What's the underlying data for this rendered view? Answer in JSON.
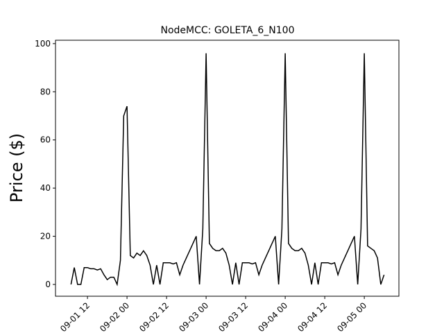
{
  "chart_data": {
    "type": "line",
    "title": "NodeMCC: GOLETA_6_N100",
    "y_label": "Price ($)",
    "x": [
      7,
      8,
      9,
      10,
      11,
      12,
      13,
      14,
      15,
      16,
      17,
      18,
      19,
      20,
      21,
      22,
      23,
      24,
      25,
      26,
      27,
      28,
      29,
      30,
      31,
      32,
      33,
      34,
      35,
      36,
      37,
      38,
      39,
      40,
      41,
      42,
      43,
      44,
      45,
      46,
      47,
      48,
      49,
      50,
      51,
      52,
      53,
      54,
      55,
      56,
      57,
      58,
      59,
      60,
      61,
      62,
      63,
      64,
      65,
      66,
      67,
      68,
      69,
      70,
      71,
      72,
      73,
      74,
      75,
      76,
      77,
      78,
      79,
      80,
      81,
      82,
      83,
      84,
      85,
      86,
      87,
      88,
      89,
      90,
      91,
      92,
      93,
      94,
      95,
      96,
      97,
      98,
      99,
      100,
      101,
      102
    ],
    "series": [
      {
        "name": "Price",
        "color": "#000000",
        "values": [
          0,
          7,
          0,
          0,
          7,
          7,
          6.5,
          6.5,
          6,
          6.5,
          4,
          2,
          3,
          3,
          0,
          10,
          70,
          74,
          12,
          11,
          13,
          12,
          14,
          12,
          8,
          0,
          8,
          0,
          9,
          9,
          9,
          8.5,
          9,
          4,
          8,
          11,
          14,
          17,
          20,
          0,
          23,
          96,
          17,
          15,
          14,
          14,
          15,
          13,
          8,
          0,
          9,
          0,
          9,
          9,
          9,
          8.5,
          9,
          4,
          8,
          11,
          14,
          17,
          20,
          0,
          23,
          96,
          17,
          15,
          14,
          14,
          15,
          13,
          8,
          0,
          9,
          0,
          9,
          9,
          9,
          8.5,
          9,
          4,
          8,
          11,
          14,
          17,
          20,
          0,
          23,
          96,
          16,
          15,
          14,
          11,
          0,
          4
        ]
      }
    ],
    "xlim": [
      2.3,
      106.5
    ],
    "xticks": [
      {
        "value": 12,
        "label": "09-01 12"
      },
      {
        "value": 24,
        "label": "09-02 00"
      },
      {
        "value": 36,
        "label": "09-02 12"
      },
      {
        "value": 48,
        "label": "09-03 00"
      },
      {
        "value": 60,
        "label": "09-03 12"
      },
      {
        "value": 72,
        "label": "09-04 00"
      },
      {
        "value": 84,
        "label": "09-04 12"
      },
      {
        "value": 96,
        "label": "09-05 00"
      }
    ],
    "ylim": [
      -4.9,
      101.4
    ],
    "yticks": [
      0,
      20,
      40,
      60,
      80,
      100
    ]
  }
}
